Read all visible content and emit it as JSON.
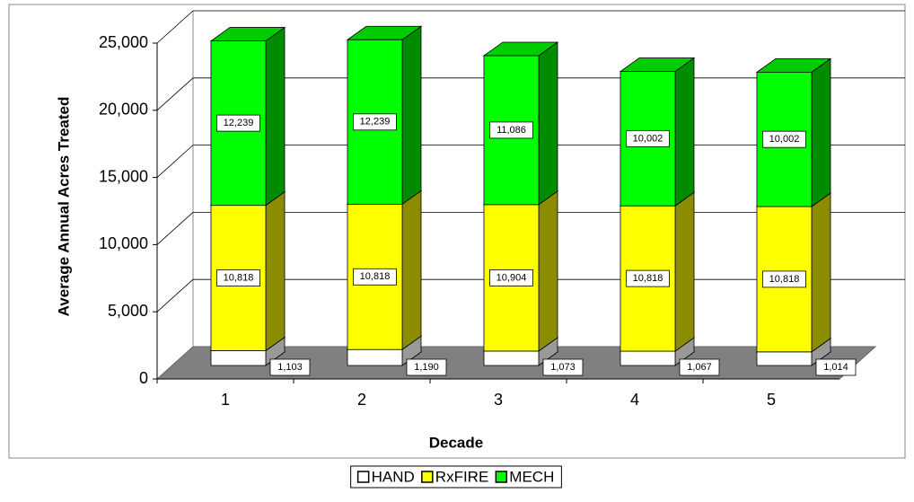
{
  "chart_data": {
    "type": "bar3d_stacked",
    "x_label": "Decade",
    "y_label": "Average Annual Acres Treated",
    "categories": [
      "1",
      "2",
      "3",
      "4",
      "5"
    ],
    "series": [
      {
        "name": "HAND",
        "color": "#ffffff",
        "values": [
          1103,
          1190,
          1073,
          1067,
          1014
        ],
        "value_labels": [
          "1,103",
          "1,190",
          "1,073",
          "1,067",
          "1,014"
        ]
      },
      {
        "name": "RxFIRE",
        "color": "#ffff00",
        "values": [
          10818,
          10818,
          10904,
          10818,
          10818
        ],
        "value_labels": [
          "10,818",
          "10,818",
          "10,904",
          "10,818",
          "10,818"
        ]
      },
      {
        "name": "MECH",
        "color": "#00ff00",
        "values": [
          12239,
          12239,
          11086,
          10002,
          10002
        ],
        "value_labels": [
          "12,239",
          "12,239",
          "11,086",
          "10,002",
          "10,002"
        ]
      }
    ],
    "ylim": [
      0,
      25000
    ],
    "yticks": [
      0,
      {
        "value": 5000,
        "label": "5,000"
      },
      {
        "value": 10000,
        "label": "10,000"
      },
      {
        "value": 15000,
        "label": "15,000"
      },
      {
        "value": 20000,
        "label": "20,000"
      },
      {
        "value": 25000,
        "label": "25,000"
      }
    ],
    "grid": true,
    "legend": "bottom"
  }
}
